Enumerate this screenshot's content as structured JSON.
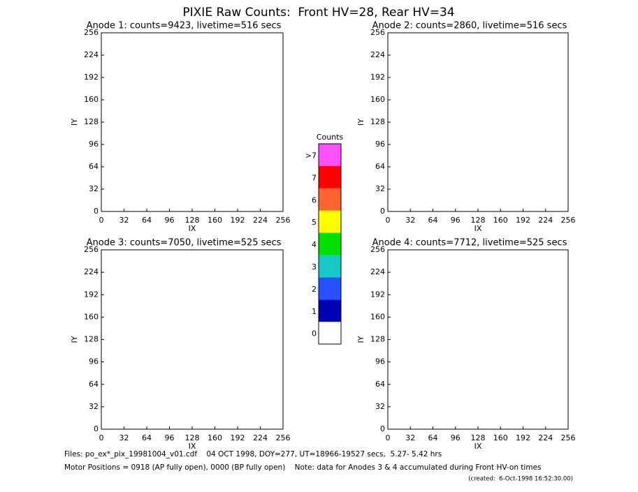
{
  "title": "PIXIE Raw Counts:  Front HV=28, Rear HV=34",
  "panels": [
    {
      "title": "Anode 1: counts=9423, livetime=516 secs",
      "xlabel": "IX",
      "ylabel": "IY",
      "xlim": [
        0,
        256
      ],
      "ylim": [
        0,
        256
      ],
      "xticks": [
        0,
        32,
        64,
        96,
        128,
        160,
        192,
        224,
        256
      ],
      "yticks": [
        0,
        32,
        64,
        96,
        128,
        160,
        192,
        224,
        256
      ]
    },
    {
      "title": "Anode 2: counts=2860, livetime=516 secs",
      "xlabel": "IX",
      "ylabel": "IY",
      "xlim": [
        0,
        256
      ],
      "ylim": [
        0,
        256
      ],
      "xticks": [
        0,
        32,
        64,
        96,
        128,
        160,
        192,
        224,
        256
      ],
      "yticks": [
        0,
        32,
        64,
        96,
        128,
        160,
        192,
        224,
        256
      ]
    },
    {
      "title": "Anode 3: counts=7050, livetime=525 secs",
      "xlabel": "IX",
      "ylabel": "IY",
      "xlim": [
        0,
        256
      ],
      "ylim": [
        0,
        256
      ],
      "xticks": [
        0,
        32,
        64,
        96,
        128,
        160,
        192,
        224,
        256
      ],
      "yticks": [
        0,
        32,
        64,
        96,
        128,
        160,
        192,
        224,
        256
      ]
    },
    {
      "title": "Anode 4: counts=7712, livetime=525 secs",
      "xlabel": "IX",
      "ylabel": "IY",
      "xlim": [
        0,
        256
      ],
      "ylim": [
        0,
        256
      ],
      "xticks": [
        0,
        32,
        64,
        96,
        128,
        160,
        192,
        224,
        256
      ],
      "yticks": [
        0,
        32,
        64,
        96,
        128,
        160,
        192,
        224,
        256
      ]
    }
  ],
  "colorbar": {
    "title": "Counts",
    "levels": [
      "0",
      "1",
      "2",
      "3",
      "4",
      "5",
      "6",
      "7",
      ">7"
    ],
    "colors": [
      "#ffffff",
      "#0000b4",
      "#2850ff",
      "#18c8c8",
      "#00e000",
      "#ffff00",
      "#ff6430",
      "#ff0000",
      "#ff50ff"
    ]
  },
  "footer": {
    "files": "Files: po_ex*_pix_19981004_v01.cdf    04 OCT 1998, DOY=277, UT=18966-19527 secs,  5.27- 5.42 hrs",
    "motor": "Motor Positions = 0918 (AP fully open), 0000 (BP fully open)    Note: data for Anodes 3 & 4 accumulated during Front HV-on times",
    "created": "(created:  6-Oct-1998 16:52:30.00)"
  }
}
